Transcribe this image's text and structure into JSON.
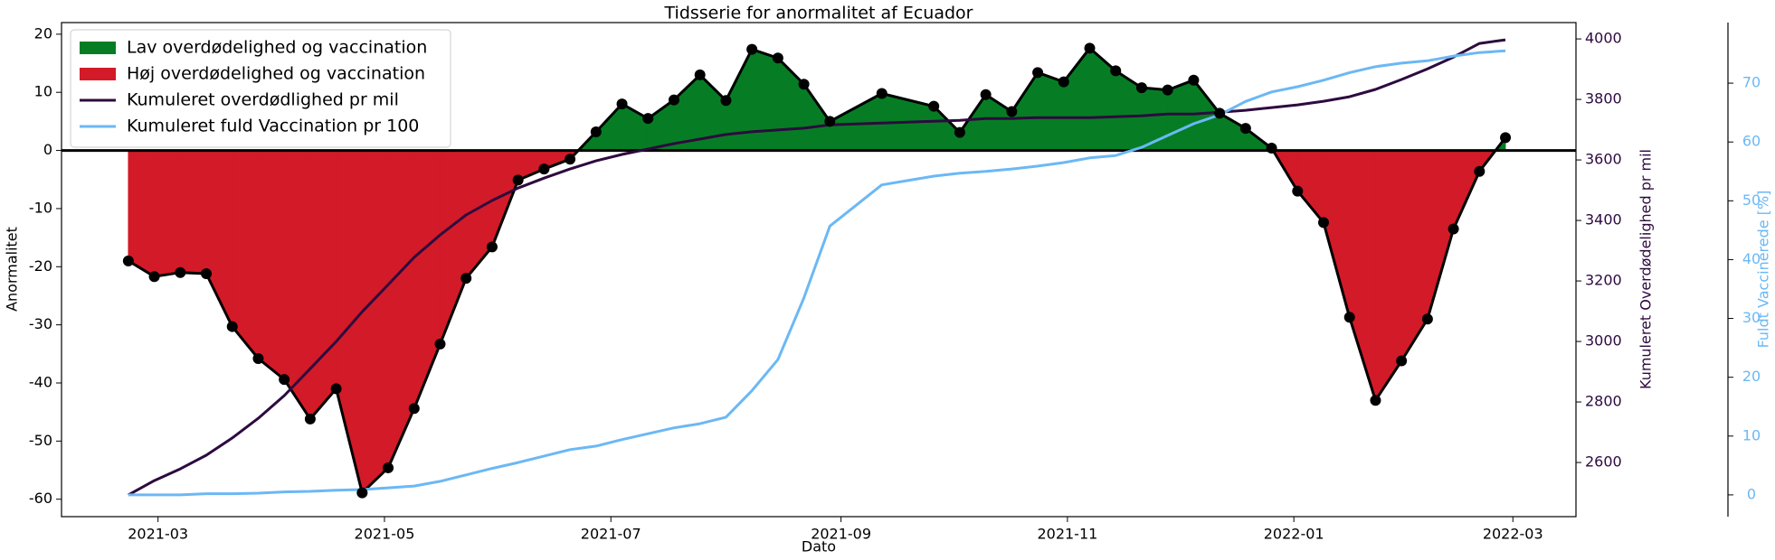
{
  "chart_data": {
    "type": "line",
    "title": "Tidsserie for anormalitet af Ecuador",
    "xlabel": "Dato",
    "ylabel": "Anormalitet",
    "y2label": "Kumuleret Overdødelighed pr mil",
    "y3label": "Fuldt Vaccinerede [%]",
    "x": [
      "2021-02-21",
      "2021-02-28",
      "2021-03-07",
      "2021-03-14",
      "2021-03-21",
      "2021-03-28",
      "2021-04-04",
      "2021-04-11",
      "2021-04-18",
      "2021-04-25",
      "2021-05-02",
      "2021-05-09",
      "2021-05-16",
      "2021-05-23",
      "2021-05-30",
      "2021-06-06",
      "2021-06-13",
      "2021-06-20",
      "2021-06-27",
      "2021-07-04",
      "2021-07-11",
      "2021-07-18",
      "2021-07-25",
      "2021-08-01",
      "2021-08-08",
      "2021-08-15",
      "2021-08-22",
      "2021-08-29",
      "2021-09-12",
      "2021-09-26",
      "2021-10-03",
      "2021-10-10",
      "2021-10-17",
      "2021-10-24",
      "2021-10-31",
      "2021-11-07",
      "2021-11-14",
      "2021-11-21",
      "2021-11-28",
      "2021-12-05",
      "2021-12-12",
      "2021-12-19",
      "2021-12-26",
      "2022-01-02",
      "2022-01-09",
      "2022-01-16",
      "2022-01-23",
      "2022-01-30",
      "2022-02-06",
      "2022-02-13",
      "2022-02-20",
      "2022-02-27"
    ],
    "xlim": [
      "2021-02-03",
      "2022-03-18"
    ],
    "xticks": [
      {
        "value": "2021-03-01",
        "label": "2021-03"
      },
      {
        "value": "2021-05-01",
        "label": "2021-05"
      },
      {
        "value": "2021-07-01",
        "label": "2021-07"
      },
      {
        "value": "2021-09-01",
        "label": "2021-09"
      },
      {
        "value": "2021-11-01",
        "label": "2021-11"
      },
      {
        "value": "2022-01-01",
        "label": "2022-01"
      },
      {
        "value": "2022-03-01",
        "label": "2022-03"
      }
    ],
    "ylim": [
      -63,
      22
    ],
    "yticks": [
      -60,
      -50,
      -40,
      -30,
      -20,
      -10,
      0,
      10,
      20
    ],
    "y2lim": [
      2421,
      4054
    ],
    "y2ticks": [
      2600,
      2800,
      3000,
      3200,
      3400,
      3600,
      3800,
      4000
    ],
    "y3lim": [
      -3.7,
      80.3
    ],
    "y3ticks": [
      0,
      10,
      20,
      30,
      40,
      50,
      60,
      70
    ],
    "fills": [
      {
        "name": "Lav overdødelighed og vaccination",
        "color": "#067d24",
        "where": "above"
      },
      {
        "name": "Høj overdødelighed og vaccination",
        "color": "#d31a28",
        "where": "below"
      }
    ],
    "series": [
      {
        "color": "#000000",
        "markers": true,
        "values": [
          -19,
          -21.7,
          -21,
          -21.2,
          -30.3,
          -35.8,
          -39.4,
          -46.2,
          -41,
          -58.9,
          -54.6,
          -44.4,
          -33.3,
          -22,
          -16.6,
          -5.1,
          -3.2,
          -1.5,
          3.2,
          8,
          5.5,
          8.7,
          13,
          8.6,
          17.4,
          15.9,
          11.4,
          5,
          9.8,
          7.6,
          3.1,
          9.6,
          6.7,
          13.4,
          11.8,
          17.6,
          13.7,
          10.8,
          10.4,
          12.1,
          6.4,
          3.8,
          0.4,
          -7,
          -12.4,
          -28.7,
          -43,
          -36.2,
          -29,
          -13.5,
          -3.6,
          2.2
        ]
      },
      {
        "name": "Kumuleret overdødlighed pr mil",
        "color": "#2d0a3f",
        "axis": "y2",
        "values": [
          2493,
          2540,
          2579,
          2624,
          2681,
          2746,
          2821,
          2910,
          3000,
          3098,
          3188,
          3278,
          3352,
          3418,
          3466,
          3507,
          3540,
          3570,
          3597,
          3618,
          3636,
          3654,
          3669,
          3684,
          3693,
          3699,
          3705,
          3716,
          3722,
          3728,
          3731,
          3737,
          3737,
          3740,
          3740,
          3740,
          3743,
          3746,
          3752,
          3752,
          3758,
          3764,
          3773,
          3782,
          3794,
          3809,
          3833,
          3866,
          3901,
          3940,
          3985,
          3997
        ]
      },
      {
        "name": "Kumuleret fuld Vaccination pr 100",
        "color": "#6bb8f5",
        "axis": "y3",
        "values": [
          0,
          0,
          0,
          0.2,
          0.2,
          0.3,
          0.5,
          0.6,
          0.8,
          0.9,
          1.2,
          1.5,
          2.3,
          3.4,
          4.5,
          5.5,
          6.6,
          7.7,
          8.3,
          9.4,
          10.4,
          11.4,
          12.1,
          13.2,
          17.7,
          23,
          33.5,
          45.7,
          52.7,
          54.2,
          54.7,
          55,
          55.4,
          55.9,
          56.5,
          57.3,
          57.7,
          59.1,
          61.1,
          63.1,
          64.6,
          66.9,
          68.5,
          69.4,
          70.5,
          71.8,
          72.8,
          73.4,
          73.8,
          74.6,
          75.2,
          75.5
        ]
      }
    ],
    "legend": "upper left"
  }
}
